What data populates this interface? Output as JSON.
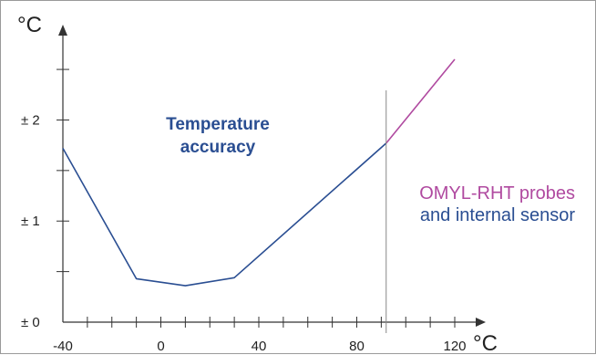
{
  "chart_data": {
    "type": "line",
    "title": "Temperature accuracy",
    "xlabel": "°C",
    "ylabel": "°C",
    "x_ticks": [
      "-40",
      "0",
      "40",
      "80",
      "120"
    ],
    "y_ticks": [
      "± 0",
      "± 1",
      "± 2"
    ],
    "xlim": [
      -40,
      120
    ],
    "ylim": [
      0,
      2.6
    ],
    "grid": false,
    "series": [
      {
        "name": "and internal sensor",
        "color": "#2a4e92",
        "x": [
          -40,
          -10,
          10,
          30,
          92
        ],
        "y": [
          1.72,
          0.43,
          0.36,
          0.44,
          1.77
        ]
      },
      {
        "name": "OMYL-RHT probes",
        "color": "#b04aa0",
        "x": [
          92,
          120
        ],
        "y": [
          1.77,
          2.6
        ]
      }
    ],
    "reference_line_x": 92,
    "legend": {
      "line1": "OMYL-RHT probes",
      "line2": "and internal sensor",
      "line1_color": "#b04aa0",
      "line2_color": "#2a4e92",
      "position": "right"
    },
    "colors": {
      "axis": "#333333",
      "title": "#2a4e92",
      "reference": "#888888"
    }
  }
}
